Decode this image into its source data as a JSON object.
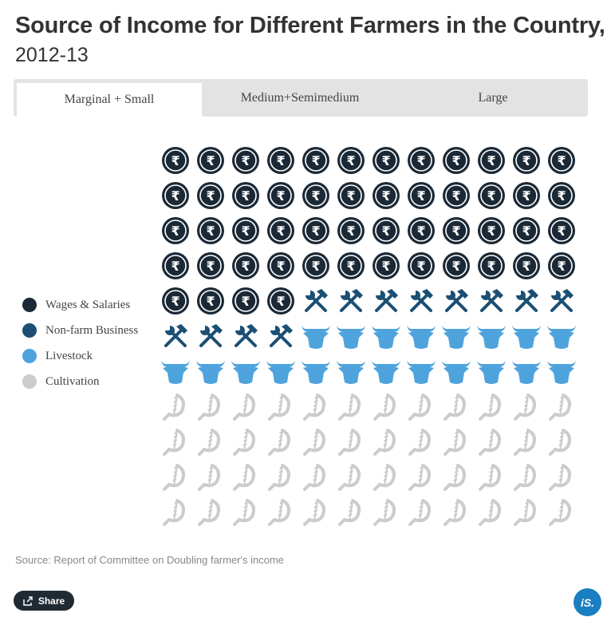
{
  "title": "Source of Income for Different Farmers in the Country,",
  "subtitle": "2012-13",
  "tabs": [
    {
      "label": "Marginal + Small",
      "active": true
    },
    {
      "label": "Medium+Semimedium",
      "active": false
    },
    {
      "label": "Large",
      "active": false
    }
  ],
  "chart_data": {
    "type": "waffle",
    "title": "Source of Income for Different Farmers in the Country, 2012-13",
    "category": "Marginal + Small",
    "units_total": 132,
    "grid": {
      "rows": 11,
      "columns": 12
    },
    "series": [
      {
        "name": "Wages & Salaries",
        "units": 52,
        "color": "#1b2936",
        "icon": "rupee-icon"
      },
      {
        "name": "Non-farm Business",
        "units": 12,
        "color": "#1b4f74",
        "icon": "hammer-wrench-icon"
      },
      {
        "name": "Livestock",
        "units": 20,
        "color": "#4ea3dd",
        "icon": "cow-head-icon"
      },
      {
        "name": "Cultivation",
        "units": 48,
        "color": "#cccccc",
        "icon": "sickle-wheat-icon"
      }
    ],
    "legend_position": "left"
  },
  "source": "Source: Report of Committee on Doubling farmer's income",
  "share_label": "Share",
  "logo_text": "iS."
}
